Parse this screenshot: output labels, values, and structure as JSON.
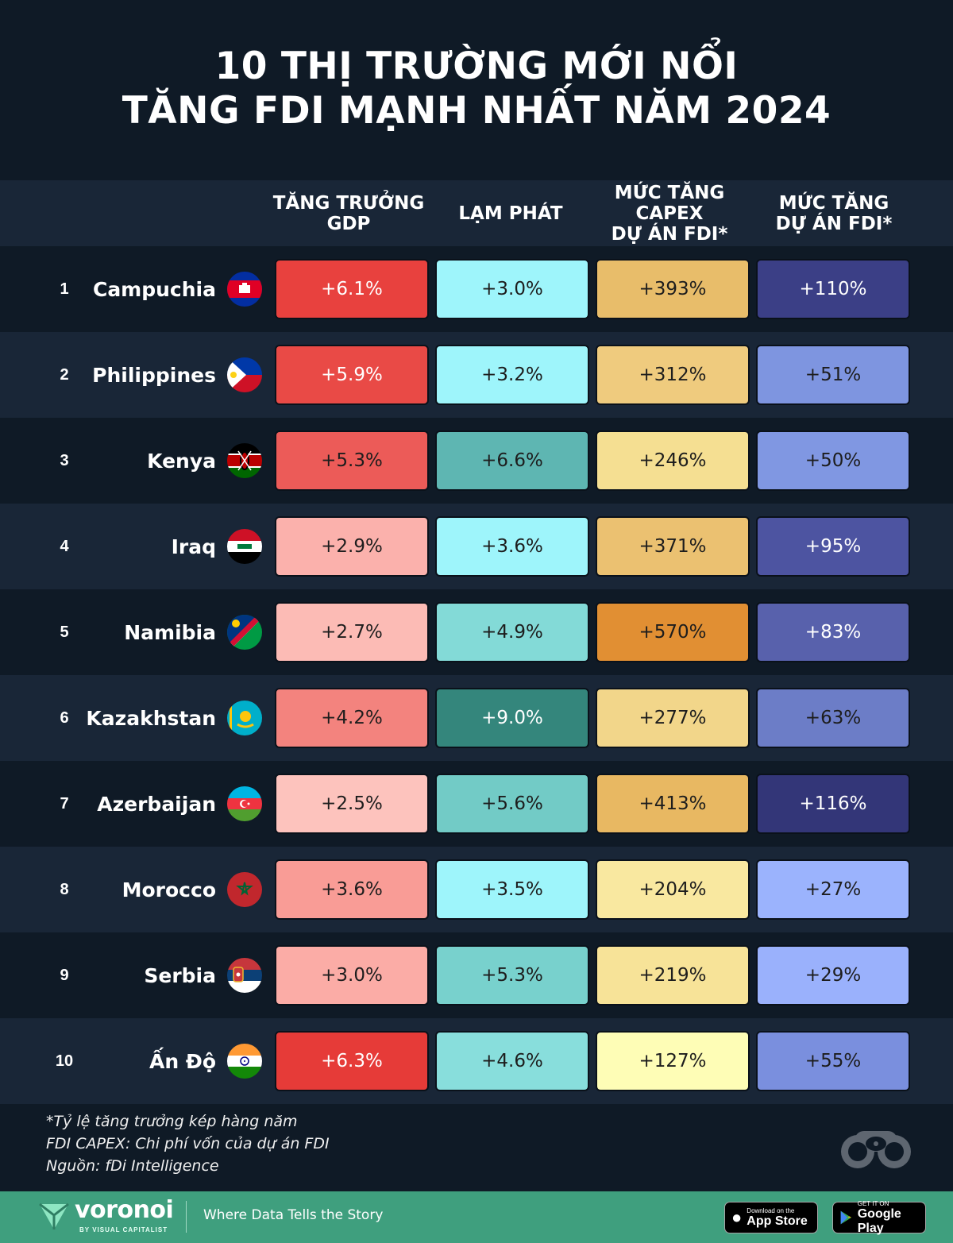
{
  "title": {
    "line1": "10 THỊ TRƯỜNG MỚI NỔI",
    "line2": "TĂNG FDI MẠNH NHẤT NĂM 2024"
  },
  "columns": {
    "gdp": "TĂNG TRƯỞNG\nGDP",
    "inflation": "LẠM PHÁT",
    "capex": "MỨC TĂNG\nCAPEX\nDỰ ÁN FDI*",
    "projects": "MỨC TĂNG\nDỰ ÁN FDI*"
  },
  "colors": {
    "background": "#0f1a26",
    "row_alt": "#192637",
    "footer": "#3f9f7e"
  },
  "chart_data": {
    "type": "table",
    "title": "10 THỊ TRƯỜNG MỚI NỔI TĂNG FDI MẠNH NHẤT NĂM 2024",
    "columns": [
      "TĂNG TRƯỞNG GDP",
      "LẠM PHÁT",
      "MỨC TĂNG CAPEX DỰ ÁN FDI*",
      "MỨC TĂNG DỰ ÁN FDI*"
    ],
    "rows": [
      {
        "rank": "1",
        "country": "Campuchia",
        "flag": "cambodia-flag-icon",
        "gdp": "+6.1%",
        "inflation": "+3.0%",
        "capex": "+393%",
        "projects": "+110%",
        "colors": {
          "gdp": "#e8413e",
          "inflation": "#9ef5fb",
          "capex": "#e8bd6a",
          "projects": "#3b3f86"
        }
      },
      {
        "rank": "2",
        "country": "Philippines",
        "flag": "philippines-flag-icon",
        "gdp": "+5.9%",
        "inflation": "+3.2%",
        "capex": "+312%",
        "projects": "+51%",
        "colors": {
          "gdp": "#e94a46",
          "inflation": "#9ef5fb",
          "capex": "#efcb7e",
          "projects": "#7e95e0"
        }
      },
      {
        "rank": "3",
        "country": "Kenya",
        "flag": "kenya-flag-icon",
        "gdp": "+5.3%",
        "inflation": "+6.6%",
        "capex": "+246%",
        "projects": "+50%",
        "colors": {
          "gdp": "#ec5b58",
          "inflation": "#5eb6b2",
          "capex": "#f5df92",
          "projects": "#8097e2"
        }
      },
      {
        "rank": "4",
        "country": "Iraq",
        "flag": "iraq-flag-icon",
        "gdp": "+2.9%",
        "inflation": "+3.6%",
        "capex": "+371%",
        "projects": "+95%",
        "colors": {
          "gdp": "#fbb1ac",
          "inflation": "#9ef5fb",
          "capex": "#ebc171",
          "projects": "#4d54a1"
        }
      },
      {
        "rank": "5",
        "country": "Namibia",
        "flag": "namibia-flag-icon",
        "gdp": "+2.7%",
        "inflation": "+4.9%",
        "capex": "+570%",
        "projects": "+83%",
        "colors": {
          "gdp": "#fcbbb5",
          "inflation": "#83dad7",
          "capex": "#e18f33",
          "projects": "#5861ac"
        }
      },
      {
        "rank": "6",
        "country": "Kazakhstan",
        "flag": "kazakhstan-flag-icon",
        "gdp": "+4.2%",
        "inflation": "+9.0%",
        "capex": "+277%",
        "projects": "+63%",
        "colors": {
          "gdp": "#f3837e",
          "inflation": "#34867c",
          "capex": "#f2d68a",
          "projects": "#6c7dc7"
        }
      },
      {
        "rank": "7",
        "country": "Azerbaijan",
        "flag": "azerbaijan-flag-icon",
        "gdp": "+2.5%",
        "inflation": "+5.6%",
        "capex": "+413%",
        "projects": "+116%",
        "colors": {
          "gdp": "#fdc3bd",
          "inflation": "#72cbc6",
          "capex": "#e8b862",
          "projects": "#333678"
        }
      },
      {
        "rank": "8",
        "country": "Morocco",
        "flag": "morocco-flag-icon",
        "gdp": "+3.6%",
        "inflation": "+3.5%",
        "capex": "+204%",
        "projects": "+27%",
        "colors": {
          "gdp": "#f99c96",
          "inflation": "#9ef5fb",
          "capex": "#f9e8a0",
          "projects": "#9bb3fd"
        }
      },
      {
        "rank": "9",
        "country": "Serbia",
        "flag": "serbia-flag-icon",
        "gdp": "+3.0%",
        "inflation": "+5.3%",
        "capex": "+219%",
        "projects": "+29%",
        "colors": {
          "gdp": "#fbaca6",
          "inflation": "#78d1cd",
          "capex": "#f7e398",
          "projects": "#9ab1fc"
        }
      },
      {
        "rank": "10",
        "country": "Ấn Độ",
        "flag": "india-flag-icon",
        "gdp": "+6.3%",
        "inflation": "+4.6%",
        "capex": "+127%",
        "projects": "+55%",
        "colors": {
          "gdp": "#e63b38",
          "inflation": "#88dedc",
          "capex": "#fefdb6",
          "projects": "#7a8fde"
        }
      }
    ]
  },
  "notes": {
    "line1": "*Tỷ lệ tăng trưởng kép hàng năm",
    "line2": "FDI CAPEX: Chi phí vốn của dự án FDI",
    "line3": "Nguồn: fDi Intelligence"
  },
  "footer": {
    "brand": "voronoi",
    "brand_sub": "BY VISUAL CAPITALIST",
    "tagline": "Where Data Tells the Story",
    "app_store_small": "Download on the",
    "app_store_big": "App Store",
    "google_small": "GET IT ON",
    "google_big": "Google Play"
  }
}
